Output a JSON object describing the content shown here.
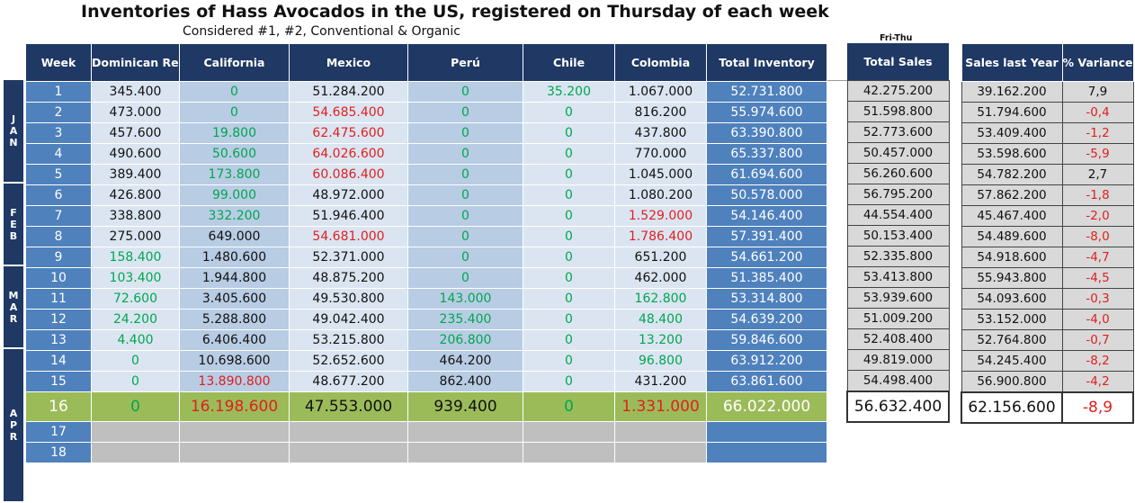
{
  "title": "Inventories of Hass Avocados in the US, registered on Thursday of each week",
  "subtitle": "Considered #1, #2, Conventional & Organic",
  "sales_note": "Fri-Thu",
  "headers": {
    "week": "Week",
    "dominican": "Dominican Rep",
    "california": "California",
    "mexico": "Mexico",
    "peru": "Perú",
    "chile": "Chile",
    "colombia": "Colombia",
    "total": "Total Inventory",
    "sales": "Total Sales",
    "last_year": "Sales last Year",
    "variance": "% Variance"
  },
  "months": [
    {
      "label": [
        "J",
        "A",
        "N"
      ],
      "rows": 5
    },
    {
      "label": [
        "F",
        "E",
        "B"
      ],
      "rows": 4
    },
    {
      "label": [
        "M",
        "A",
        "R"
      ],
      "rows": 4
    },
    {
      "label": [
        "A",
        "P",
        "R"
      ],
      "rows": 5
    }
  ],
  "colors": {
    "green": "#00a650",
    "red": "#e01f1f",
    "header": "#1f3864",
    "highlight": "#9bbb59"
  },
  "rows": [
    {
      "week": "1",
      "dominican": "345.400",
      "california": "0",
      "mexico": "51.284.200",
      "peru": "0",
      "chile": "35.200",
      "colombia": "1.067.000",
      "total": "52.731.800",
      "sales": "42.275.200",
      "last_year": "39.162.200",
      "variance": "7,9"
    },
    {
      "week": "2",
      "dominican": "473.000",
      "california": "0",
      "mexico": "54.685.400",
      "peru": "0",
      "chile": "0",
      "colombia": "816.200",
      "total": "55.974.600",
      "sales": "51.598.800",
      "last_year": "51.794.600",
      "variance": "-0,4"
    },
    {
      "week": "3",
      "dominican": "457.600",
      "california": "19.800",
      "mexico": "62.475.600",
      "peru": "0",
      "chile": "0",
      "colombia": "437.800",
      "total": "63.390.800",
      "sales": "52.773.600",
      "last_year": "53.409.400",
      "variance": "-1,2"
    },
    {
      "week": "4",
      "dominican": "490.600",
      "california": "50.600",
      "mexico": "64.026.600",
      "peru": "0",
      "chile": "0",
      "colombia": "770.000",
      "total": "65.337.800",
      "sales": "50.457.000",
      "last_year": "53.598.600",
      "variance": "-5,9"
    },
    {
      "week": "5",
      "dominican": "389.400",
      "california": "173.800",
      "mexico": "60.086.400",
      "peru": "0",
      "chile": "0",
      "colombia": "1.045.000",
      "total": "61.694.600",
      "sales": "56.260.600",
      "last_year": "54.782.200",
      "variance": "2,7"
    },
    {
      "week": "6",
      "dominican": "426.800",
      "california": "99.000",
      "mexico": "48.972.000",
      "peru": "0",
      "chile": "0",
      "colombia": "1.080.200",
      "total": "50.578.000",
      "sales": "56.795.200",
      "last_year": "57.862.200",
      "variance": "-1,8"
    },
    {
      "week": "7",
      "dominican": "338.800",
      "california": "332.200",
      "mexico": "51.946.400",
      "peru": "0",
      "chile": "0",
      "colombia": "1.529.000",
      "total": "54.146.400",
      "sales": "44.554.400",
      "last_year": "45.467.400",
      "variance": "-2,0"
    },
    {
      "week": "8",
      "dominican": "275.000",
      "california": "649.000",
      "mexico": "54.681.000",
      "peru": "0",
      "chile": "0",
      "colombia": "1.786.400",
      "total": "57.391.400",
      "sales": "50.153.400",
      "last_year": "54.489.600",
      "variance": "-8,0"
    },
    {
      "week": "9",
      "dominican": "158.400",
      "california": "1.480.600",
      "mexico": "52.371.000",
      "peru": "0",
      "chile": "0",
      "colombia": "651.200",
      "total": "54.661.200",
      "sales": "52.335.800",
      "last_year": "54.918.600",
      "variance": "-4,7"
    },
    {
      "week": "10",
      "dominican": "103.400",
      "california": "1.944.800",
      "mexico": "48.875.200",
      "peru": "0",
      "chile": "0",
      "colombia": "462.000",
      "total": "51.385.400",
      "sales": "53.413.800",
      "last_year": "55.943.800",
      "variance": "-4,5"
    },
    {
      "week": "11",
      "dominican": "72.600",
      "california": "3.405.600",
      "mexico": "49.530.800",
      "peru": "143.000",
      "chile": "0",
      "colombia": "162.800",
      "total": "53.314.800",
      "sales": "53.939.600",
      "last_year": "54.093.600",
      "variance": "-0,3"
    },
    {
      "week": "12",
      "dominican": "24.200",
      "california": "5.288.800",
      "mexico": "49.042.400",
      "peru": "235.400",
      "chile": "0",
      "colombia": "48.400",
      "total": "54.639.200",
      "sales": "51.009.200",
      "last_year": "53.152.000",
      "variance": "-4,0"
    },
    {
      "week": "13",
      "dominican": "4.400",
      "california": "6.406.400",
      "mexico": "53.215.800",
      "peru": "206.800",
      "chile": "0",
      "colombia": "13.200",
      "total": "59.846.600",
      "sales": "52.408.400",
      "last_year": "52.764.800",
      "variance": "-0,7"
    },
    {
      "week": "14",
      "dominican": "0",
      "california": "10.698.600",
      "mexico": "52.652.600",
      "peru": "464.200",
      "chile": "0",
      "colombia": "96.800",
      "total": "63.912.200",
      "sales": "49.819.000",
      "last_year": "54.245.400",
      "variance": "-8,2"
    },
    {
      "week": "15",
      "dominican": "0",
      "california": "13.890.800",
      "mexico": "48.677.200",
      "peru": "862.400",
      "chile": "0",
      "colombia": "431.200",
      "total": "63.861.600",
      "sales": "54.498.400",
      "last_year": "56.900.800",
      "variance": "-4,2"
    },
    {
      "week": "16",
      "dominican": "0",
      "california": "16.198.600",
      "mexico": "47.553.000",
      "peru": "939.400",
      "chile": "0",
      "colombia": "1.331.000",
      "total": "66.022.000",
      "sales": "56.632.400",
      "last_year": "62.156.600",
      "variance": "-8,9"
    },
    {
      "week": "17",
      "dominican": "",
      "california": "",
      "mexico": "",
      "peru": "",
      "chile": "",
      "colombia": "",
      "total": "",
      "sales": "",
      "last_year": "",
      "variance": ""
    },
    {
      "week": "18",
      "dominican": "",
      "california": "",
      "mexico": "",
      "peru": "",
      "chile": "",
      "colombia": "",
      "total": "",
      "sales": "",
      "last_year": "",
      "variance": ""
    }
  ],
  "cell_colors": {
    "green": [
      "0-california",
      "0-peru",
      "0-chile",
      "1-california",
      "1-peru",
      "1-chile",
      "2-california",
      "2-peru",
      "2-chile",
      "3-california",
      "3-peru",
      "3-chile",
      "4-california",
      "4-peru",
      "4-chile",
      "5-california",
      "5-peru",
      "5-chile",
      "6-california",
      "6-peru",
      "6-chile",
      "7-peru",
      "7-chile",
      "8-dominican",
      "8-peru",
      "8-chile",
      "9-dominican",
      "9-peru",
      "9-chile",
      "10-dominican",
      "10-peru",
      "10-chile",
      "10-colombia",
      "11-dominican",
      "11-peru",
      "11-chile",
      "11-colombia",
      "12-dominican",
      "12-peru",
      "12-chile",
      "12-colombia",
      "13-dominican",
      "13-chile",
      "13-colombia",
      "14-dominican",
      "14-chile",
      "15-dominican",
      "15-chile"
    ],
    "red": [
      "1-mexico",
      "2-mexico",
      "3-mexico",
      "4-mexico",
      "6-colombia",
      "7-mexico",
      "7-colombia",
      "14-california",
      "15-california",
      "15-colombia",
      "1-variance",
      "2-variance",
      "3-variance",
      "5-variance",
      "6-variance",
      "7-variance",
      "8-variance",
      "9-variance",
      "10-variance",
      "11-variance",
      "12-variance",
      "13-variance",
      "14-variance",
      "15-variance"
    ]
  }
}
